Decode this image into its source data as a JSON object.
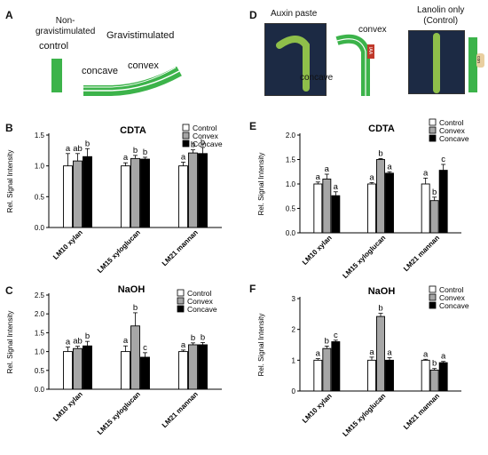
{
  "panels": {
    "a": {
      "label": "A",
      "non_grav": "Non-\ngravistimulated",
      "control": "control",
      "gravistimulated": "Gravistimulated",
      "concave": "concave",
      "convex": "convex"
    },
    "d": {
      "label": "D",
      "auxin_paste": "Auxin paste",
      "lanolin": "Lanolin only\n(Control)",
      "convex": "convex",
      "concave": "concave",
      "iaa": "IAA",
      "con": "con"
    },
    "b": {
      "label": "B"
    },
    "c": {
      "label": "C"
    },
    "e": {
      "label": "E"
    },
    "f": {
      "label": "F"
    }
  },
  "colors": {
    "control": "#ffffff",
    "convex": "#a6a6a6",
    "concave": "#000000",
    "stem_green": "#3cb34a",
    "photo_bg": "#1c2a44",
    "iaa_patch": "#c0392b"
  },
  "legend": [
    "Control",
    "Convex",
    "Concave"
  ],
  "chart_data": [
    {
      "id": "B",
      "type": "bar",
      "title": "CDTA",
      "ylabel": "Rel. Signal Intensity",
      "ylim": [
        0,
        1.5
      ],
      "yticks": [
        "0.0",
        "0.5",
        "1.0",
        "1.5"
      ],
      "categories": [
        "LM10 xylan",
        "LM15 xyloglucan",
        "LM21 mannan"
      ],
      "series": [
        {
          "name": "Control",
          "values": [
            1.0,
            1.0,
            1.0
          ],
          "errors": [
            0.2,
            0.05,
            0.06
          ]
        },
        {
          "name": "Convex",
          "values": [
            1.08,
            1.12,
            1.21
          ],
          "errors": [
            0.12,
            0.05,
            0.05
          ]
        },
        {
          "name": "Concave",
          "values": [
            1.15,
            1.11,
            1.2
          ],
          "errors": [
            0.13,
            0.03,
            0.1
          ]
        }
      ],
      "letters": [
        [
          "a",
          "ab",
          "b"
        ],
        [
          "a",
          "b",
          "b"
        ],
        [
          "a",
          "b",
          "b"
        ]
      ]
    },
    {
      "id": "C",
      "type": "bar",
      "title": "NaOH",
      "ylabel": "Rel. Signal Intensity",
      "ylim": [
        0,
        2.5
      ],
      "yticks": [
        "0.0",
        "0.5",
        "1.0",
        "1.5",
        "2.0",
        "2.5"
      ],
      "categories": [
        "LM10 xylan",
        "LM15 xyloglucan",
        "LM21 mannan"
      ],
      "series": [
        {
          "name": "Control",
          "values": [
            1.0,
            1.0,
            1.0
          ],
          "errors": [
            0.12,
            0.15,
            0.04
          ]
        },
        {
          "name": "Convex",
          "values": [
            1.08,
            1.68,
            1.18
          ],
          "errors": [
            0.06,
            0.35,
            0.05
          ]
        },
        {
          "name": "Concave",
          "values": [
            1.15,
            0.85,
            1.18
          ],
          "errors": [
            0.12,
            0.12,
            0.06
          ]
        }
      ],
      "letters": [
        [
          "a",
          "ab",
          "b"
        ],
        [
          "a",
          "b",
          "c"
        ],
        [
          "a",
          "b",
          "b"
        ]
      ]
    },
    {
      "id": "E",
      "type": "bar",
      "title": "CDTA",
      "ylabel": "Rel. Signal Intensity",
      "ylim": [
        0,
        2.0
      ],
      "yticks": [
        "0.0",
        "0.5",
        "1.0",
        "1.5",
        "2.0"
      ],
      "categories": [
        "LM10 xylan",
        "LM15 xyloglucan",
        "LM21 mannan"
      ],
      "series": [
        {
          "name": "Control",
          "values": [
            1.0,
            1.0,
            1.0
          ],
          "errors": [
            0.04,
            0.03,
            0.12
          ]
        },
        {
          "name": "Convex",
          "values": [
            1.1,
            1.5,
            0.66
          ],
          "errors": [
            0.1,
            0.02,
            0.07
          ]
        },
        {
          "name": "Concave",
          "values": [
            0.76,
            1.22,
            1.28
          ],
          "errors": [
            0.08,
            0.03,
            0.12
          ]
        }
      ],
      "letters": [
        [
          "a",
          "a",
          "a"
        ],
        [
          "a",
          "b",
          "a"
        ],
        [
          "a",
          "b",
          "c"
        ]
      ]
    },
    {
      "id": "F",
      "type": "bar",
      "title": "NaOH",
      "ylabel": "Rel. Signal Intensity",
      "ylim": [
        0,
        3
      ],
      "yticks": [
        "0",
        "1",
        "2",
        "3"
      ],
      "categories": [
        "LM10 xylan",
        "LM15 xyloglucan",
        "LM21 mannan"
      ],
      "series": [
        {
          "name": "Control",
          "values": [
            1.0,
            1.0,
            1.0
          ],
          "errors": [
            0.05,
            0.1,
            0.03
          ]
        },
        {
          "name": "Convex",
          "values": [
            1.38,
            2.42,
            0.68
          ],
          "errors": [
            0.08,
            0.1,
            0.05
          ]
        },
        {
          "name": "Concave",
          "values": [
            1.6,
            1.0,
            0.92
          ],
          "errors": [
            0.05,
            0.08,
            0.04
          ]
        }
      ],
      "letters": [
        [
          "a",
          "b",
          "c"
        ],
        [
          "a",
          "b",
          "a"
        ],
        [
          "a",
          "b",
          "a"
        ]
      ]
    }
  ]
}
